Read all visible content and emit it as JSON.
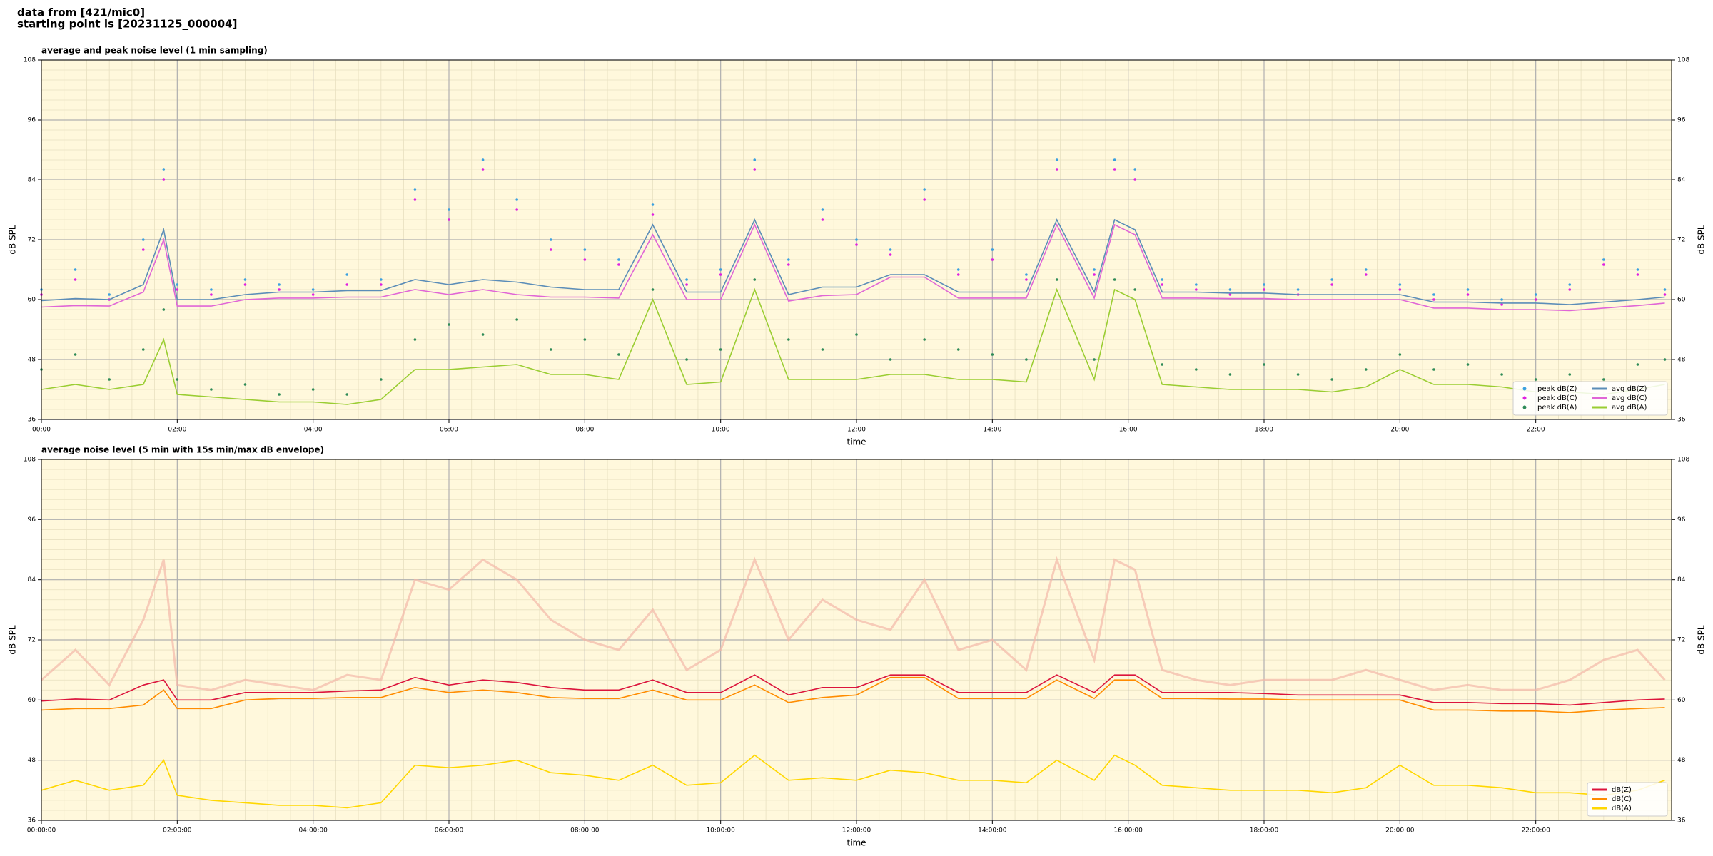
{
  "header": {
    "lines": [
      "data from [421/mic0]",
      "starting point is [20231125_000004]"
    ]
  },
  "chart_data": [
    {
      "type": "line",
      "title": "average and peak noise level (1 min sampling)",
      "xlabel": "time",
      "ylabel": "dB SPL",
      "xlim": [
        0,
        24
      ],
      "ylim": [
        36,
        108
      ],
      "yticks": [
        36,
        48,
        60,
        72,
        84,
        96,
        108
      ],
      "xticks": [
        {
          "value": 0,
          "label": "00:00"
        },
        {
          "value": 2,
          "label": "02:00"
        },
        {
          "value": 4,
          "label": "04:00"
        },
        {
          "value": 6,
          "label": "06:00"
        },
        {
          "value": 8,
          "label": "08:00"
        },
        {
          "value": 10,
          "label": "10:00"
        },
        {
          "value": 12,
          "label": "12:00"
        },
        {
          "value": 14,
          "label": "14:00"
        },
        {
          "value": 16,
          "label": "16:00"
        },
        {
          "value": 18,
          "label": "18:00"
        },
        {
          "value": 20,
          "label": "20:00"
        },
        {
          "value": 22,
          "label": "22:00"
        }
      ],
      "grid": true,
      "legend": "lower right",
      "background": "#fff8dc",
      "x": [
        0,
        0.5,
        1,
        1.5,
        1.8,
        2,
        2.5,
        3,
        3.5,
        4,
        4.5,
        5,
        5.5,
        6,
        6.5,
        7,
        7.5,
        8,
        8.5,
        9,
        9.5,
        10,
        10.5,
        11,
        11.5,
        12,
        12.5,
        13,
        13.5,
        14,
        14.5,
        14.95,
        15.5,
        15.8,
        16.1,
        16.5,
        17,
        17.5,
        18,
        18.5,
        19,
        19.5,
        20,
        20.5,
        21,
        21.5,
        22,
        22.5,
        23,
        23.5,
        23.9
      ],
      "series": [
        {
          "name": "peak dB(Z)",
          "type": "scatter",
          "color": "#3aa0e0",
          "values": [
            62,
            66,
            61,
            72,
            86,
            63,
            62,
            64,
            63,
            62,
            65,
            64,
            82,
            78,
            88,
            80,
            72,
            70,
            68,
            79,
            64,
            66,
            88,
            68,
            78,
            72,
            70,
            82,
            66,
            70,
            65,
            88,
            66,
            88,
            86,
            64,
            63,
            62,
            63,
            62,
            64,
            66,
            63,
            61,
            62,
            60,
            61,
            63,
            68,
            66,
            62
          ]
        },
        {
          "name": "peak dB(C)",
          "type": "scatter",
          "color": "#e020e0",
          "values": [
            61,
            64,
            60,
            70,
            84,
            62,
            61,
            63,
            62,
            61,
            63,
            63,
            80,
            76,
            86,
            78,
            70,
            68,
            67,
            77,
            63,
            65,
            86,
            67,
            76,
            71,
            69,
            80,
            65,
            68,
            64,
            86,
            65,
            86,
            84,
            63,
            62,
            61,
            62,
            61,
            63,
            65,
            62,
            60,
            61,
            59,
            60,
            62,
            67,
            65,
            61
          ]
        },
        {
          "name": "peak dB(A)",
          "type": "scatter",
          "color": "#2e8b57",
          "values": [
            46,
            49,
            44,
            50,
            58,
            44,
            42,
            43,
            41,
            42,
            41,
            44,
            52,
            55,
            53,
            56,
            50,
            52,
            49,
            62,
            48,
            50,
            64,
            52,
            50,
            53,
            48,
            52,
            50,
            49,
            48,
            64,
            48,
            64,
            62,
            47,
            46,
            45,
            47,
            45,
            44,
            46,
            49,
            46,
            47,
            45,
            44,
            45,
            44,
            47,
            48
          ]
        },
        {
          "name": "avg dB(Z)",
          "type": "line",
          "color": "#5b8db8",
          "values": [
            59.8,
            60.2,
            60,
            63,
            74,
            60,
            60,
            61,
            61.5,
            61.5,
            61.8,
            61.8,
            64,
            63,
            64,
            63.5,
            62.5,
            62,
            62,
            75,
            61.5,
            61.5,
            76,
            61,
            62.5,
            62.5,
            65,
            65,
            61.5,
            61.5,
            61.5,
            76,
            61.5,
            76,
            74,
            61.5,
            61.5,
            61.3,
            61.3,
            61,
            61,
            61,
            61,
            59.5,
            59.5,
            59.3,
            59.3,
            59,
            59.5,
            60,
            60.5
          ]
        },
        {
          "name": "avg dB(C)",
          "type": "line",
          "color": "#e066d6",
          "values": [
            58.5,
            58.8,
            58.7,
            61.5,
            72,
            58.7,
            58.7,
            60,
            60.3,
            60.3,
            60.5,
            60.5,
            62,
            61,
            62,
            61,
            60.5,
            60.5,
            60.3,
            73,
            60,
            60,
            75,
            59.7,
            60.8,
            61,
            64.5,
            64.5,
            60.3,
            60.3,
            60.3,
            75,
            60.3,
            75,
            73,
            60.3,
            60.3,
            60.2,
            60.2,
            60,
            60,
            60,
            60,
            58.3,
            58.3,
            58,
            58,
            57.8,
            58.3,
            58.8,
            59.3
          ]
        },
        {
          "name": "avg dB(A)",
          "type": "line",
          "color": "#9acd32",
          "values": [
            42,
            43,
            42,
            43,
            52,
            41,
            40.5,
            40,
            39.5,
            39.5,
            39,
            40,
            46,
            46,
            46.5,
            47,
            45,
            45,
            44,
            60,
            43,
            43.5,
            62,
            44,
            44,
            44,
            45,
            45,
            44,
            44,
            43.5,
            62,
            44,
            62,
            60,
            43,
            42.5,
            42,
            42,
            42,
            41.5,
            42.5,
            46,
            43,
            43,
            42.5,
            41.5,
            41.5,
            41,
            42,
            43
          ]
        }
      ]
    },
    {
      "type": "line",
      "title": "average noise level (5 min with 15s min/max dB envelope)",
      "xlabel": "time",
      "ylabel": "dB SPL",
      "xlim": [
        0,
        24
      ],
      "ylim": [
        36,
        108
      ],
      "yticks": [
        36,
        48,
        60,
        72,
        84,
        96,
        108
      ],
      "xticks": [
        {
          "value": 0,
          "label": "00:00:00"
        },
        {
          "value": 2,
          "label": "02:00:00"
        },
        {
          "value": 4,
          "label": "04:00:00"
        },
        {
          "value": 6,
          "label": "06:00:00"
        },
        {
          "value": 8,
          "label": "08:00:00"
        },
        {
          "value": 10,
          "label": "10:00:00"
        },
        {
          "value": 12,
          "label": "12:00:00"
        },
        {
          "value": 14,
          "label": "14:00:00"
        },
        {
          "value": 16,
          "label": "16:00:00"
        },
        {
          "value": 18,
          "label": "18:00:00"
        },
        {
          "value": 20,
          "label": "20:00:00"
        },
        {
          "value": 22,
          "label": "22:00:00"
        }
      ],
      "grid": true,
      "legend": "lower right",
      "background": "#fff8dc",
      "x": [
        0,
        0.5,
        1,
        1.5,
        1.8,
        2,
        2.5,
        3,
        3.5,
        4,
        4.5,
        5,
        5.5,
        6,
        6.5,
        7,
        7.5,
        8,
        8.5,
        9,
        9.5,
        10,
        10.5,
        11,
        11.5,
        12,
        12.5,
        13,
        13.5,
        14,
        14.5,
        14.95,
        15.5,
        15.8,
        16.1,
        16.5,
        17,
        17.5,
        18,
        18.5,
        19,
        19.5,
        20,
        20.5,
        21,
        21.5,
        22,
        22.5,
        23,
        23.5,
        23.9
      ],
      "series": [
        {
          "type": "envelope",
          "color": "#f4b8a8",
          "values": [
            64,
            70,
            63,
            76,
            88,
            63,
            62,
            64,
            63,
            62,
            65,
            64,
            84,
            82,
            88,
            84,
            76,
            72,
            70,
            78,
            66,
            70,
            88,
            72,
            80,
            76,
            74,
            84,
            70,
            72,
            66,
            88,
            68,
            88,
            86,
            66,
            64,
            63,
            64,
            64,
            64,
            66,
            64,
            62,
            63,
            62,
            62,
            64,
            68,
            70,
            64
          ]
        },
        {
          "name": "dB(Z)",
          "type": "line",
          "color": "#dc143c",
          "values": [
            59.8,
            60.2,
            60,
            63,
            64,
            60,
            60,
            61.5,
            61.5,
            61.5,
            61.8,
            62,
            64.5,
            63,
            64,
            63.5,
            62.5,
            62,
            62,
            64,
            61.5,
            61.5,
            65,
            61,
            62.5,
            62.5,
            65,
            65,
            61.5,
            61.5,
            61.5,
            65,
            61.5,
            65,
            65,
            61.5,
            61.5,
            61.5,
            61.3,
            61,
            61,
            61,
            61,
            59.5,
            59.5,
            59.3,
            59.3,
            59,
            59.5,
            60,
            60.2
          ]
        },
        {
          "name": "dB(C)",
          "type": "line",
          "color": "#ff8c00",
          "values": [
            58,
            58.3,
            58.3,
            59,
            62,
            58.3,
            58.3,
            60,
            60.3,
            60.3,
            60.5,
            60.5,
            62.5,
            61.5,
            62,
            61.5,
            60.5,
            60.3,
            60.3,
            62,
            60,
            60,
            63,
            59.5,
            60.5,
            61,
            64.5,
            64.5,
            60.3,
            60.3,
            60.3,
            64,
            60.3,
            64,
            64,
            60.3,
            60.3,
            60.2,
            60.2,
            60,
            60,
            60,
            60,
            58,
            58,
            57.8,
            57.8,
            57.5,
            58,
            58.3,
            58.5
          ]
        },
        {
          "name": "dB(A)",
          "type": "line",
          "color": "#ffd700",
          "values": [
            42,
            44,
            42,
            43,
            48,
            41,
            40,
            39.5,
            39,
            39,
            38.5,
            39.5,
            47,
            46.5,
            47,
            48,
            45.5,
            45,
            44,
            47,
            43,
            43.5,
            49,
            44,
            44.5,
            44,
            46,
            45.5,
            44,
            44,
            43.5,
            48,
            44,
            49,
            47,
            43,
            42.5,
            42,
            42,
            42,
            41.5,
            42.5,
            47,
            43,
            43,
            42.5,
            41.5,
            41.5,
            41,
            42,
            44
          ]
        }
      ]
    }
  ]
}
